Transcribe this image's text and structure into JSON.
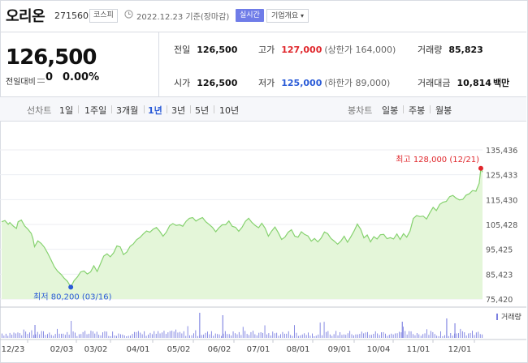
{
  "header": {
    "stock_name": "오리온",
    "stock_code": "271560",
    "market_badge": "코스피",
    "date_text": "2022.12.23 기준(장마감)",
    "realtime_button": "실시간",
    "company_button": "기업개요"
  },
  "price_panel": {
    "current_price": "126,500",
    "change_label": "전일대비",
    "change_value": "0",
    "change_rate": "0.00%"
  },
  "metrics": {
    "prev_close": {
      "label": "전일",
      "value": "126,500"
    },
    "high": {
      "label": "고가",
      "value": "127,000",
      "sub": "(상한가 164,000)"
    },
    "volume": {
      "label": "거래량",
      "value": "85,823"
    },
    "open": {
      "label": "시가",
      "value": "126,500"
    },
    "low": {
      "label": "저가",
      "value": "125,000",
      "sub": "(하한가 89,000)"
    },
    "trade_amount": {
      "label": "거래대금",
      "value": "10,814",
      "unit": "백만"
    }
  },
  "toolbar": {
    "line_chart_label": "선차트",
    "periods": [
      "1일",
      "1주일",
      "3개월",
      "1년",
      "3년",
      "5년",
      "10년"
    ],
    "active_period": "1년",
    "candle_label": "봉차트",
    "candle_periods": [
      "일봉",
      "주봉",
      "월봉"
    ]
  },
  "colors": {
    "accent_blue": "#2a5bd7",
    "up_red": "#e0262b",
    "line_green": "#86d26f",
    "area_green": "#e4f6d9",
    "volume_bar": "#7b7fe0"
  },
  "chart_data": {
    "type": "area",
    "x_ticks": [
      "12/23",
      "02/03",
      "03/02",
      "04/01",
      "05/02",
      "06/02",
      "07/01",
      "08/01",
      "09/01",
      "10/04",
      "11/01",
      "12/01"
    ],
    "y_ticks": [
      "135,436",
      "125,433",
      "115,430",
      "105,428",
      "95,425",
      "85,423",
      "75,420"
    ],
    "ylim": [
      75420,
      135436
    ],
    "price_points": [
      [
        0,
        106500
      ],
      [
        2,
        107000
      ],
      [
        4,
        105500
      ],
      [
        5,
        106200
      ],
      [
        7,
        104800
      ],
      [
        9,
        103800
      ],
      [
        10,
        106500
      ],
      [
        12,
        107200
      ],
      [
        14,
        104800
      ],
      [
        16,
        103500
      ],
      [
        18,
        101800
      ],
      [
        19,
        99800
      ],
      [
        20,
        96500
      ],
      [
        22,
        98800
      ],
      [
        24,
        97800
      ],
      [
        26,
        96200
      ],
      [
        28,
        93800
      ],
      [
        30,
        91200
      ],
      [
        32,
        88400
      ],
      [
        34,
        86600
      ],
      [
        36,
        85400
      ],
      [
        38,
        83800
      ],
      [
        40,
        82500
      ],
      [
        42,
        80200
      ],
      [
        44,
        82800
      ],
      [
        46,
        84300
      ],
      [
        48,
        86300
      ],
      [
        50,
        86700
      ],
      [
        52,
        85500
      ],
      [
        54,
        86300
      ],
      [
        56,
        88800
      ],
      [
        58,
        86500
      ],
      [
        60,
        89500
      ],
      [
        62,
        92700
      ],
      [
        64,
        93600
      ],
      [
        66,
        92400
      ],
      [
        68,
        94000
      ],
      [
        70,
        96800
      ],
      [
        72,
        96400
      ],
      [
        74,
        93300
      ],
      [
        76,
        94300
      ],
      [
        78,
        96600
      ],
      [
        80,
        97600
      ],
      [
        82,
        99300
      ],
      [
        84,
        100200
      ],
      [
        86,
        101600
      ],
      [
        88,
        102800
      ],
      [
        90,
        102300
      ],
      [
        92,
        103500
      ],
      [
        94,
        104200
      ],
      [
        96,
        102700
      ],
      [
        98,
        100700
      ],
      [
        100,
        102300
      ],
      [
        102,
        104900
      ],
      [
        104,
        105800
      ],
      [
        106,
        105000
      ],
      [
        108,
        105300
      ],
      [
        110,
        104700
      ],
      [
        112,
        106700
      ],
      [
        114,
        107900
      ],
      [
        116,
        108200
      ],
      [
        118,
        106800
      ],
      [
        120,
        107600
      ],
      [
        122,
        108200
      ],
      [
        124,
        106500
      ],
      [
        126,
        105400
      ],
      [
        128,
        104300
      ],
      [
        130,
        102500
      ],
      [
        132,
        104100
      ],
      [
        134,
        105300
      ],
      [
        136,
        105300
      ],
      [
        138,
        106800
      ],
      [
        140,
        104700
      ],
      [
        142,
        104300
      ],
      [
        144,
        102700
      ],
      [
        146,
        104300
      ],
      [
        148,
        106700
      ],
      [
        150,
        107900
      ],
      [
        152,
        106200
      ],
      [
        154,
        105000
      ],
      [
        156,
        104100
      ],
      [
        158,
        105900
      ],
      [
        160,
        103900
      ],
      [
        162,
        100700
      ],
      [
        164,
        102800
      ],
      [
        166,
        104400
      ],
      [
        168,
        102100
      ],
      [
        170,
        99400
      ],
      [
        172,
        100300
      ],
      [
        174,
        102300
      ],
      [
        176,
        103300
      ],
      [
        178,
        100700
      ],
      [
        180,
        100300
      ],
      [
        182,
        102500
      ],
      [
        184,
        101400
      ],
      [
        186,
        100800
      ],
      [
        188,
        98700
      ],
      [
        190,
        99800
      ],
      [
        192,
        98400
      ],
      [
        194,
        99900
      ],
      [
        196,
        102400
      ],
      [
        198,
        101700
      ],
      [
        200,
        99800
      ],
      [
        202,
        98700
      ],
      [
        204,
        97500
      ],
      [
        206,
        98700
      ],
      [
        208,
        100700
      ],
      [
        210,
        98300
      ],
      [
        212,
        100400
      ],
      [
        214,
        102800
      ],
      [
        216,
        105600
      ],
      [
        218,
        103500
      ],
      [
        220,
        100000
      ],
      [
        222,
        101200
      ],
      [
        224,
        98400
      ],
      [
        226,
        100500
      ],
      [
        228,
        99600
      ],
      [
        230,
        101300
      ],
      [
        232,
        101400
      ],
      [
        234,
        99700
      ],
      [
        236,
        100100
      ],
      [
        238,
        99600
      ],
      [
        240,
        101600
      ],
      [
        242,
        99400
      ],
      [
        244,
        101700
      ],
      [
        246,
        100300
      ],
      [
        248,
        102800
      ],
      [
        250,
        107800
      ],
      [
        252,
        109000
      ],
      [
        254,
        108600
      ],
      [
        256,
        108800
      ],
      [
        258,
        107600
      ],
      [
        260,
        110100
      ],
      [
        262,
        112300
      ],
      [
        264,
        111000
      ],
      [
        266,
        113500
      ],
      [
        268,
        114400
      ],
      [
        270,
        114700
      ],
      [
        272,
        116600
      ],
      [
        274,
        117100
      ],
      [
        276,
        116000
      ],
      [
        278,
        115300
      ],
      [
        280,
        115500
      ],
      [
        282,
        117200
      ],
      [
        284,
        117800
      ],
      [
        286,
        119100
      ],
      [
        288,
        118800
      ],
      [
        290,
        122000
      ],
      [
        291,
        128000
      ],
      [
        292,
        126500
      ]
    ],
    "max_label": "최고 128,000 (12/21)",
    "min_label": "최저 80,200 (03/16)",
    "volume_label": "거래량"
  }
}
